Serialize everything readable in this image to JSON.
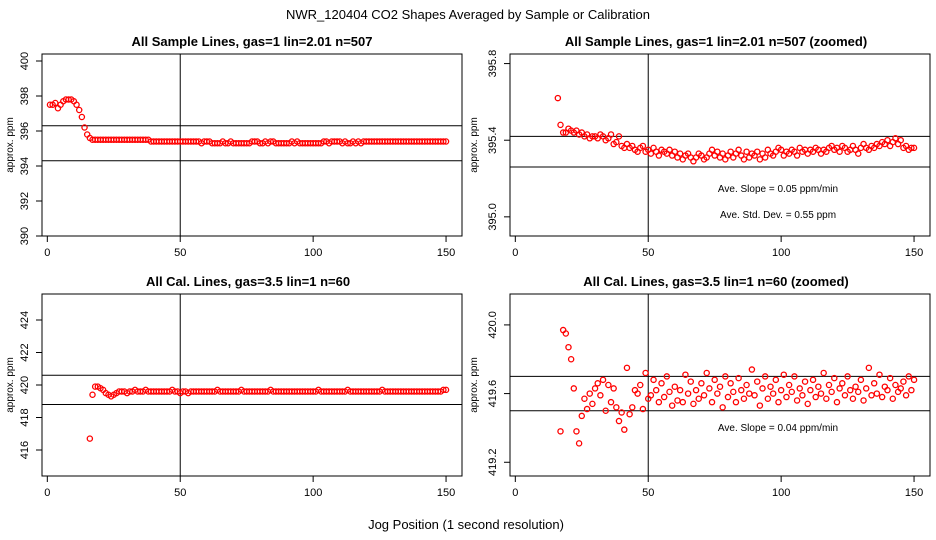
{
  "figure": {
    "title": "NWR_120404  CO2 Shapes Averaged by Sample or Calibration",
    "xlabel": "Jog Position (1 second resolution)"
  },
  "chart_data": [
    {
      "type": "scatter",
      "title": "All Sample Lines, gas=1 lin=2.01 n=507",
      "ylabel": "approx. ppm",
      "xlim": [
        -2,
        156
      ],
      "ylim": [
        390,
        400.4
      ],
      "xticks": [
        0,
        50,
        100,
        150
      ],
      "yticks": [
        390,
        392,
        394,
        396,
        398,
        400
      ],
      "hlines": [
        396.3,
        394.3
      ],
      "vline": 50,
      "annotations": [],
      "points_x": [
        1,
        2,
        3,
        4,
        5,
        6,
        7,
        8,
        9,
        10,
        11,
        12,
        13,
        14,
        15,
        16,
        17,
        18,
        19,
        20,
        21,
        22,
        23,
        24,
        25,
        26,
        27,
        28,
        29,
        30,
        31,
        32,
        33,
        34,
        35,
        36,
        37,
        38,
        39,
        40,
        41,
        42,
        43,
        44,
        45,
        46,
        47,
        48,
        49,
        50,
        51,
        52,
        53,
        54,
        55,
        56,
        57,
        58,
        59,
        60,
        61,
        62,
        63,
        64,
        65,
        66,
        67,
        68,
        69,
        70,
        71,
        72,
        73,
        74,
        75,
        76,
        77,
        78,
        79,
        80,
        81,
        82,
        83,
        84,
        85,
        86,
        87,
        88,
        89,
        90,
        91,
        92,
        93,
        94,
        95,
        96,
        97,
        98,
        99,
        100,
        101,
        102,
        103,
        104,
        105,
        106,
        107,
        108,
        109,
        110,
        111,
        112,
        113,
        114,
        115,
        116,
        117,
        118,
        119,
        120,
        121,
        122,
        123,
        124,
        125,
        126,
        127,
        128,
        129,
        130,
        131,
        132,
        133,
        134,
        135,
        136,
        137,
        138,
        139,
        140,
        141,
        142,
        143,
        144,
        145,
        146,
        147,
        148,
        149,
        150
      ],
      "points_y": [
        397.5,
        397.5,
        397.6,
        397.3,
        397.5,
        397.7,
        397.8,
        397.8,
        397.8,
        397.7,
        397.5,
        397.2,
        396.8,
        396.2,
        395.8,
        395.6,
        395.5,
        395.5,
        395.5,
        395.5,
        395.5,
        395.5,
        395.5,
        395.5,
        395.5,
        395.5,
        395.5,
        395.5,
        395.5,
        395.5,
        395.5,
        395.5,
        395.5,
        395.5,
        395.5,
        395.5,
        395.5,
        395.5,
        395.4,
        395.4,
        395.4,
        395.4,
        395.4,
        395.4,
        395.4,
        395.4,
        395.4,
        395.4,
        395.4,
        395.4,
        395.4,
        395.4,
        395.4,
        395.4,
        395.4,
        395.4,
        395.4,
        395.3,
        395.4,
        395.4,
        395.4,
        395.3,
        395.3,
        395.3,
        395.3,
        395.4,
        395.3,
        395.3,
        395.4,
        395.3,
        395.3,
        395.3,
        395.3,
        395.3,
        395.3,
        395.3,
        395.4,
        395.4,
        395.4,
        395.3,
        395.3,
        395.4,
        395.3,
        395.4,
        395.4,
        395.3,
        395.3,
        395.3,
        395.3,
        395.3,
        395.3,
        395.4,
        395.3,
        395.4,
        395.3,
        395.3,
        395.3,
        395.3,
        395.3,
        395.3,
        395.3,
        395.3,
        395.3,
        395.4,
        395.4,
        395.3,
        395.4,
        395.4,
        395.4,
        395.4,
        395.3,
        395.4,
        395.3,
        395.3,
        395.4,
        395.3,
        395.4,
        395.3,
        395.4,
        395.4,
        395.4,
        395.4,
        395.4,
        395.4,
        395.4,
        395.4,
        395.4,
        395.4,
        395.4,
        395.4,
        395.4,
        395.4,
        395.4,
        395.4,
        395.4,
        395.4,
        395.4,
        395.4,
        395.4,
        395.4,
        395.4,
        395.4,
        395.4,
        395.4,
        395.4,
        395.4,
        395.4,
        395.4,
        395.4,
        395.4
      ]
    },
    {
      "type": "scatter",
      "title": "All Sample Lines, gas=1 lin=2.01 n=507 (zoomed)",
      "ylabel": "approx. ppm",
      "xlim": [
        -2,
        156
      ],
      "ylim": [
        394.9,
        395.85
      ],
      "xticks": [
        0,
        50,
        100,
        150
      ],
      "yticks": [
        395.0,
        395.4,
        395.8
      ],
      "ytick_labels": [
        "395.0",
        "395.4",
        "395.8"
      ],
      "hlines": [
        395.42,
        395.26
      ],
      "vline": 50,
      "annotations": [
        "Ave. Slope =  0.05  ppm/min",
        "Ave. Std. Dev. =  0.55  ppm"
      ],
      "points_x": [
        16,
        17,
        18,
        19,
        20,
        21,
        22,
        23,
        24,
        25,
        26,
        27,
        28,
        29,
        30,
        31,
        32,
        33,
        34,
        35,
        36,
        37,
        38,
        39,
        40,
        41,
        42,
        43,
        44,
        45,
        46,
        47,
        48,
        49,
        50,
        51,
        52,
        53,
        54,
        55,
        56,
        57,
        58,
        59,
        60,
        61,
        62,
        63,
        64,
        65,
        66,
        67,
        68,
        69,
        70,
        71,
        72,
        73,
        74,
        75,
        76,
        77,
        78,
        79,
        80,
        81,
        82,
        83,
        84,
        85,
        86,
        87,
        88,
        89,
        90,
        91,
        92,
        93,
        94,
        95,
        96,
        97,
        98,
        99,
        100,
        101,
        102,
        103,
        104,
        105,
        106,
        107,
        108,
        109,
        110,
        111,
        112,
        113,
        114,
        115,
        116,
        117,
        118,
        119,
        120,
        121,
        122,
        123,
        124,
        125,
        126,
        127,
        128,
        129,
        130,
        131,
        132,
        133,
        134,
        135,
        136,
        137,
        138,
        139,
        140,
        141,
        142,
        143,
        144,
        145,
        146,
        147,
        148,
        149,
        150
      ],
      "points_y": [
        395.62,
        395.48,
        395.44,
        395.44,
        395.46,
        395.45,
        395.44,
        395.45,
        395.43,
        395.44,
        395.42,
        395.43,
        395.41,
        395.42,
        395.42,
        395.41,
        395.43,
        395.42,
        395.4,
        395.41,
        395.43,
        395.38,
        395.39,
        395.42,
        395.37,
        395.36,
        395.38,
        395.36,
        395.37,
        395.35,
        395.34,
        395.36,
        395.37,
        395.34,
        395.35,
        395.33,
        395.36,
        395.34,
        395.32,
        395.35,
        395.34,
        395.33,
        395.35,
        395.32,
        395.34,
        395.31,
        395.33,
        395.3,
        395.32,
        395.33,
        395.31,
        395.29,
        395.31,
        395.33,
        395.32,
        395.3,
        395.31,
        395.33,
        395.35,
        395.32,
        395.34,
        395.31,
        395.33,
        395.3,
        395.32,
        395.34,
        395.31,
        395.33,
        395.35,
        395.32,
        395.3,
        395.34,
        395.31,
        395.33,
        395.32,
        395.34,
        395.3,
        395.33,
        395.31,
        395.35,
        395.33,
        395.32,
        395.34,
        395.36,
        395.35,
        395.32,
        395.34,
        395.33,
        395.35,
        395.34,
        395.32,
        395.36,
        395.34,
        395.35,
        395.33,
        395.35,
        395.34,
        395.36,
        395.35,
        395.33,
        395.35,
        395.34,
        395.36,
        395.37,
        395.35,
        395.36,
        395.34,
        395.37,
        395.36,
        395.34,
        395.35,
        395.37,
        395.35,
        395.33,
        395.36,
        395.38,
        395.36,
        395.35,
        395.37,
        395.36,
        395.38,
        395.37,
        395.39,
        395.38,
        395.4,
        395.37,
        395.39,
        395.41,
        395.38,
        395.4,
        395.36,
        395.37,
        395.35,
        395.36,
        395.36
      ]
    },
    {
      "type": "scatter",
      "title": "All Cal. Lines, gas=3.5 lin=1 n=60",
      "ylabel": "approx. ppm",
      "xlim": [
        -2,
        156
      ],
      "ylim": [
        414.4,
        425.6
      ],
      "xticks": [
        0,
        50,
        100,
        150
      ],
      "yticks": [
        416,
        418,
        420,
        422,
        424
      ],
      "hlines": [
        420.6,
        418.8
      ],
      "vline": 50,
      "annotations": [],
      "points_x": [
        16,
        17,
        18,
        19,
        20,
        21,
        22,
        23,
        24,
        25,
        26,
        27,
        28,
        29,
        30,
        31,
        32,
        33,
        34,
        35,
        36,
        37,
        38,
        39,
        40,
        41,
        42,
        43,
        44,
        45,
        46,
        47,
        48,
        49,
        50,
        51,
        52,
        53,
        54,
        55,
        56,
        57,
        58,
        59,
        60,
        61,
        62,
        63,
        64,
        65,
        66,
        67,
        68,
        69,
        70,
        71,
        72,
        73,
        74,
        75,
        76,
        77,
        78,
        79,
        80,
        81,
        82,
        83,
        84,
        85,
        86,
        87,
        88,
        89,
        90,
        91,
        92,
        93,
        94,
        95,
        96,
        97,
        98,
        99,
        100,
        101,
        102,
        103,
        104,
        105,
        106,
        107,
        108,
        109,
        110,
        111,
        112,
        113,
        114,
        115,
        116,
        117,
        118,
        119,
        120,
        121,
        122,
        123,
        124,
        125,
        126,
        127,
        128,
        129,
        130,
        131,
        132,
        133,
        134,
        135,
        136,
        137,
        138,
        139,
        140,
        141,
        142,
        143,
        144,
        145,
        146,
        147,
        148,
        149,
        150
      ],
      "points_y": [
        416.7,
        419.4,
        419.9,
        419.9,
        419.8,
        419.7,
        419.5,
        419.4,
        419.3,
        419.4,
        419.5,
        419.6,
        419.6,
        419.6,
        419.5,
        419.6,
        419.6,
        419.7,
        419.6,
        419.6,
        419.6,
        419.7,
        419.6,
        419.6,
        419.6,
        419.6,
        419.6,
        419.6,
        419.6,
        419.6,
        419.6,
        419.7,
        419.6,
        419.6,
        419.5,
        419.6,
        419.6,
        419.5,
        419.6,
        419.6,
        419.6,
        419.6,
        419.6,
        419.6,
        419.6,
        419.6,
        419.6,
        419.6,
        419.7,
        419.6,
        419.6,
        419.6,
        419.6,
        419.6,
        419.6,
        419.6,
        419.6,
        419.7,
        419.6,
        419.6,
        419.6,
        419.6,
        419.6,
        419.6,
        419.6,
        419.6,
        419.6,
        419.6,
        419.7,
        419.6,
        419.6,
        419.6,
        419.6,
        419.6,
        419.6,
        419.6,
        419.6,
        419.6,
        419.6,
        419.6,
        419.6,
        419.6,
        419.6,
        419.6,
        419.6,
        419.6,
        419.7,
        419.6,
        419.6,
        419.6,
        419.6,
        419.6,
        419.6,
        419.6,
        419.6,
        419.6,
        419.6,
        419.7,
        419.6,
        419.6,
        419.6,
        419.6,
        419.6,
        419.6,
        419.6,
        419.6,
        419.6,
        419.6,
        419.6,
        419.6,
        419.7,
        419.6,
        419.6,
        419.6,
        419.6,
        419.6,
        419.6,
        419.6,
        419.6,
        419.6,
        419.6,
        419.6,
        419.6,
        419.6,
        419.6,
        419.6,
        419.6,
        419.6,
        419.6,
        419.6,
        419.6,
        419.6,
        419.6,
        419.7,
        419.7
      ]
    },
    {
      "type": "scatter",
      "title": "All Cal. Lines, gas=3.5 lin=1 n=60 (zoomed)",
      "ylabel": "approx. ppm",
      "xlim": [
        -2,
        156
      ],
      "ylim": [
        419.12,
        420.18
      ],
      "xticks": [
        0,
        50,
        100,
        150
      ],
      "yticks": [
        419.2,
        419.6,
        420.0
      ],
      "ytick_labels": [
        "419.2",
        "419.6",
        "420.0"
      ],
      "hlines": [
        419.7,
        419.5
      ],
      "vline": 50,
      "annotations": [
        "Ave. Slope =  0.04  ppm/min"
      ],
      "points_x": [
        17,
        18,
        19,
        20,
        21,
        22,
        23,
        24,
        25,
        26,
        27,
        28,
        29,
        30,
        31,
        32,
        33,
        34,
        35,
        36,
        37,
        38,
        39,
        40,
        41,
        42,
        43,
        44,
        45,
        46,
        47,
        48,
        49,
        50,
        51,
        52,
        53,
        54,
        55,
        56,
        57,
        58,
        59,
        60,
        61,
        62,
        63,
        64,
        65,
        66,
        67,
        68,
        69,
        70,
        71,
        72,
        73,
        74,
        75,
        76,
        77,
        78,
        79,
        80,
        81,
        82,
        83,
        84,
        85,
        86,
        87,
        88,
        89,
        90,
        91,
        92,
        93,
        94,
        95,
        96,
        97,
        98,
        99,
        100,
        101,
        102,
        103,
        104,
        105,
        106,
        107,
        108,
        109,
        110,
        111,
        112,
        113,
        114,
        115,
        116,
        117,
        118,
        119,
        120,
        121,
        122,
        123,
        124,
        125,
        126,
        127,
        128,
        129,
        130,
        131,
        132,
        133,
        134,
        135,
        136,
        137,
        138,
        139,
        140,
        141,
        142,
        143,
        144,
        145,
        146,
        147,
        148,
        149,
        150
      ],
      "points_y": [
        419.38,
        419.97,
        419.95,
        419.87,
        419.8,
        419.63,
        419.38,
        419.31,
        419.47,
        419.57,
        419.51,
        419.6,
        419.54,
        419.63,
        419.66,
        419.59,
        419.68,
        419.5,
        419.65,
        419.55,
        419.63,
        419.52,
        419.44,
        419.49,
        419.39,
        419.75,
        419.48,
        419.52,
        419.62,
        419.6,
        419.65,
        419.51,
        419.72,
        419.57,
        419.59,
        419.68,
        419.62,
        419.55,
        419.66,
        419.58,
        419.7,
        419.61,
        419.53,
        419.64,
        419.56,
        419.62,
        419.55,
        419.71,
        419.6,
        419.67,
        419.54,
        419.62,
        419.57,
        419.66,
        419.59,
        419.72,
        419.63,
        419.55,
        419.68,
        419.6,
        419.64,
        419.52,
        419.7,
        419.58,
        419.66,
        419.61,
        419.55,
        419.69,
        419.62,
        419.57,
        419.65,
        419.6,
        419.74,
        419.59,
        419.67,
        419.53,
        419.63,
        419.7,
        419.57,
        419.64,
        419.6,
        419.68,
        419.55,
        419.62,
        419.71,
        419.58,
        419.65,
        419.61,
        419.7,
        419.56,
        419.63,
        419.59,
        419.67,
        419.54,
        419.62,
        419.68,
        419.58,
        419.64,
        419.6,
        419.72,
        419.57,
        419.65,
        419.61,
        419.69,
        419.55,
        419.63,
        419.66,
        419.59,
        419.7,
        419.62,
        419.57,
        419.64,
        419.61,
        419.68,
        419.56,
        419.63,
        419.75,
        419.59,
        419.66,
        419.6,
        419.71,
        419.58,
        419.64,
        419.62,
        419.69,
        419.57,
        419.65,
        419.61,
        419.63,
        419.67,
        419.59,
        419.7,
        419.62,
        419.68
      ]
    }
  ]
}
